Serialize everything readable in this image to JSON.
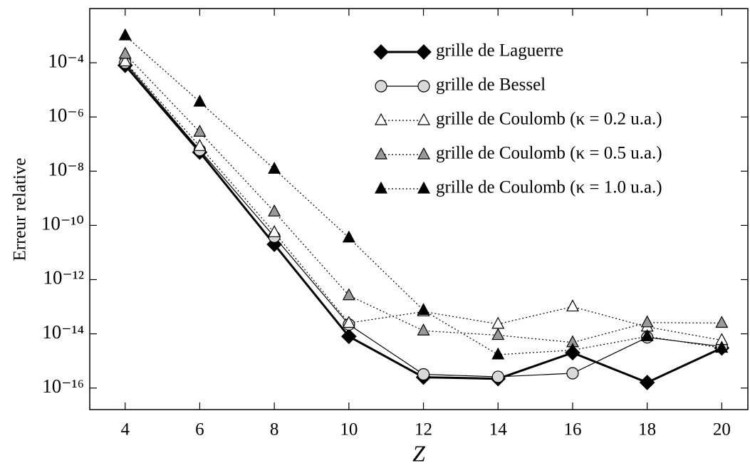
{
  "chart_data": {
    "type": "line",
    "xlabel": "Z",
    "ylabel": "Erreur relative",
    "x": [
      4,
      6,
      8,
      10,
      12,
      14,
      16,
      18,
      20
    ],
    "xlim": [
      3.05,
      20.7
    ],
    "xticks": [
      4,
      6,
      8,
      10,
      12,
      14,
      16,
      18,
      20
    ],
    "ylim": [
      1.6e-17,
      0.01
    ],
    "yscale": "log",
    "yticks": [
      {
        "value": 0.0001,
        "label": "10⁻⁴"
      },
      {
        "value": 1e-06,
        "label": "10⁻⁶"
      },
      {
        "value": 1e-08,
        "label": "10⁻⁸"
      },
      {
        "value": 1e-10,
        "label": "10⁻¹⁰"
      },
      {
        "value": 1e-12,
        "label": "10⁻¹²"
      },
      {
        "value": 1e-14,
        "label": "10⁻¹⁴"
      },
      {
        "value": 1e-16,
        "label": "10⁻¹⁶"
      }
    ],
    "legend": "upper right",
    "series": [
      {
        "name": "grille de Laguerre",
        "color": "#000000",
        "marker": "diamond",
        "marker_fill": "#000000",
        "line_style": "solid",
        "line_width": 3,
        "values": [
          8e-05,
          5e-08,
          2e-11,
          8e-15,
          2.5e-16,
          2.2e-16,
          2e-15,
          1.6e-16,
          3e-15
        ]
      },
      {
        "name": "grille de Bessel",
        "color": "#000000",
        "marker": "circle",
        "marker_fill": "#d9d9d9",
        "line_style": "solid",
        "line_width": 1.2,
        "values": [
          0.0001,
          6e-08,
          3.8e-11,
          2.2e-14,
          3.2e-16,
          2.6e-16,
          3.5e-16,
          7.4e-15,
          3.4e-15
        ]
      },
      {
        "name": "grille de Coulomb (κ = 0.2 u.a.)",
        "color": "#000000",
        "marker": "triangle",
        "marker_fill": "#ffffff",
        "line_style": "dotted",
        "line_width": 1.2,
        "values": [
          0.00011,
          8.3e-08,
          5.5e-11,
          2.5e-14,
          6.6e-14,
          2.3e-14,
          1e-13,
          1.8e-14,
          5.8e-15
        ]
      },
      {
        "name": "grille de Coulomb (κ = 0.5 u.a.)",
        "color": "#000000",
        "marker": "triangle",
        "marker_fill": "#9a9a9a",
        "line_style": "dotted",
        "line_width": 1.2,
        "values": [
          0.00021,
          2.8e-07,
          3.2e-10,
          2.6e-13,
          1.3e-14,
          8.9e-15,
          4.8e-15,
          2.6e-14,
          2.5e-14
        ]
      },
      {
        "name": "grille de Coulomb (κ = 1.0 u.a.)",
        "color": "#000000",
        "marker": "triangle",
        "marker_fill": "#000000",
        "line_style": "dotted",
        "line_width": 1.2,
        "values": [
          0.001,
          3.6e-06,
          1.2e-08,
          3.5e-11,
          7.4e-14,
          1.7e-15,
          2.5e-15,
          8e-15,
          3e-15
        ]
      }
    ]
  }
}
